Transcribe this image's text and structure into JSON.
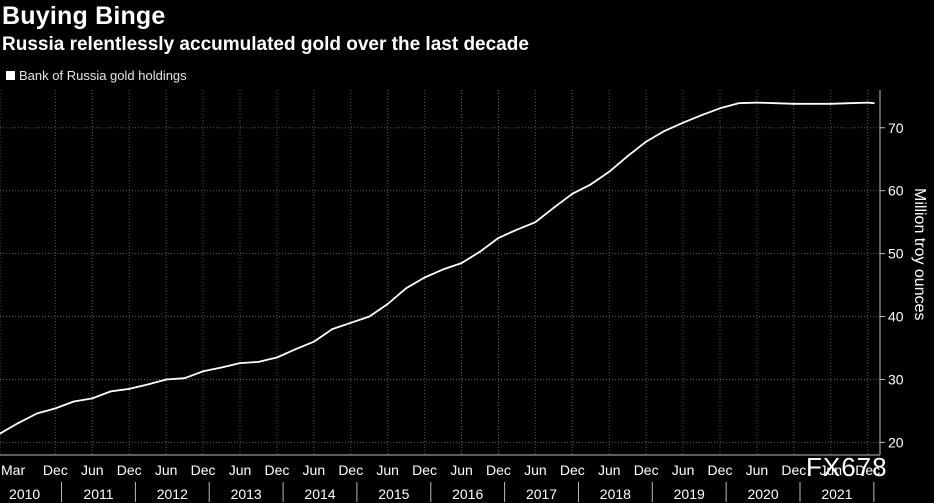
{
  "header": {
    "title": "Buying Binge",
    "subtitle": "Russia relentlessly accumulated gold over the last decade"
  },
  "watermark": "FX678",
  "colors": {
    "background": "#000000",
    "line": "#ffffff",
    "grid": "#5a5a5a",
    "text": "#ffffff"
  },
  "chart_data": {
    "type": "line",
    "title": "Buying Binge",
    "subtitle": "Russia relentlessly accumulated gold over the last decade",
    "ylabel": "Million troy ounces",
    "ylim": [
      18,
      76
    ],
    "yticks": [
      20,
      30,
      40,
      50,
      60,
      70
    ],
    "grid": true,
    "legend_placement": "top-left",
    "xlim": [
      "2010-03",
      "2022-02"
    ],
    "x_ticks_month": [
      {
        "label": "Mar",
        "x": "2010-03"
      },
      {
        "label": "Dec",
        "x": "2010-12"
      },
      {
        "label": "Jun",
        "x": "2011-06"
      },
      {
        "label": "Dec",
        "x": "2011-12"
      },
      {
        "label": "Jun",
        "x": "2012-06"
      },
      {
        "label": "Dec",
        "x": "2012-12"
      },
      {
        "label": "Jun",
        "x": "2013-06"
      },
      {
        "label": "Dec",
        "x": "2013-12"
      },
      {
        "label": "Jun",
        "x": "2014-06"
      },
      {
        "label": "Dec",
        "x": "2014-12"
      },
      {
        "label": "Jun",
        "x": "2015-06"
      },
      {
        "label": "Dec",
        "x": "2015-12"
      },
      {
        "label": "Jun",
        "x": "2016-06"
      },
      {
        "label": "Dec",
        "x": "2016-12"
      },
      {
        "label": "Jun",
        "x": "2017-06"
      },
      {
        "label": "Dec",
        "x": "2017-12"
      },
      {
        "label": "Jun",
        "x": "2018-06"
      },
      {
        "label": "Dec",
        "x": "2018-12"
      },
      {
        "label": "Jun",
        "x": "2019-06"
      },
      {
        "label": "Dec",
        "x": "2019-12"
      },
      {
        "label": "Jun",
        "x": "2020-06"
      },
      {
        "label": "Dec",
        "x": "2020-12"
      },
      {
        "label": "Jun",
        "x": "2021-06"
      },
      {
        "label": "Dec",
        "x": "2021-12"
      }
    ],
    "x_ticks_year": [
      {
        "label": "2010",
        "x": "2010-07"
      },
      {
        "label": "2011",
        "x": "2011-07"
      },
      {
        "label": "2012",
        "x": "2012-07"
      },
      {
        "label": "2013",
        "x": "2013-07"
      },
      {
        "label": "2014",
        "x": "2014-07"
      },
      {
        "label": "2015",
        "x": "2015-07"
      },
      {
        "label": "2016",
        "x": "2016-07"
      },
      {
        "label": "2017",
        "x": "2017-07"
      },
      {
        "label": "2018",
        "x": "2018-07"
      },
      {
        "label": "2019",
        "x": "2019-07"
      },
      {
        "label": "2020",
        "x": "2020-07"
      },
      {
        "label": "2021",
        "x": "2021-07"
      }
    ],
    "series": [
      {
        "name": "Bank of Russia gold holdings",
        "x": [
          "2010-03",
          "2010-06",
          "2010-09",
          "2010-12",
          "2011-03",
          "2011-06",
          "2011-09",
          "2011-12",
          "2012-03",
          "2012-06",
          "2012-09",
          "2012-12",
          "2013-03",
          "2013-06",
          "2013-09",
          "2013-12",
          "2014-03",
          "2014-06",
          "2014-09",
          "2014-12",
          "2015-03",
          "2015-06",
          "2015-09",
          "2015-12",
          "2016-03",
          "2016-06",
          "2016-09",
          "2016-12",
          "2017-03",
          "2017-06",
          "2017-09",
          "2017-12",
          "2018-03",
          "2018-06",
          "2018-09",
          "2018-12",
          "2019-03",
          "2019-06",
          "2019-09",
          "2019-12",
          "2020-03",
          "2020-06",
          "2020-09",
          "2020-12",
          "2021-03",
          "2021-06",
          "2021-09",
          "2021-12",
          "2022-01"
        ],
        "values": [
          21.4,
          23.1,
          24.6,
          25.4,
          26.5,
          27.0,
          28.1,
          28.5,
          29.2,
          30.0,
          30.2,
          31.3,
          31.9,
          32.6,
          32.8,
          33.5,
          34.8,
          36.0,
          38.0,
          39.0,
          40.0,
          42.0,
          44.5,
          46.2,
          47.5,
          48.5,
          50.3,
          52.5,
          53.8,
          55.0,
          57.3,
          59.5,
          61.0,
          63.0,
          65.5,
          67.8,
          69.5,
          70.8,
          72.0,
          73.1,
          73.9,
          74.0,
          73.9,
          73.8,
          73.8,
          73.8,
          73.9,
          74.0,
          73.9
        ]
      }
    ]
  }
}
